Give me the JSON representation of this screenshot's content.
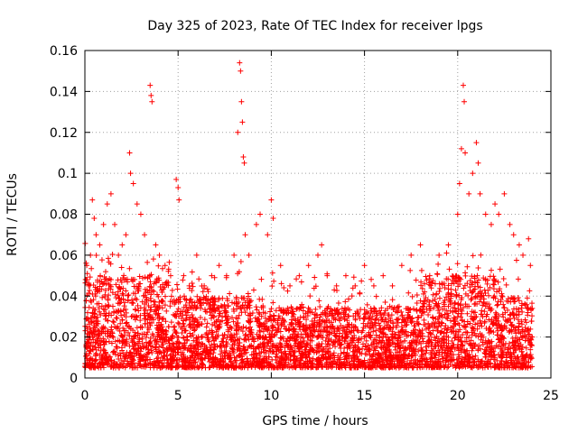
{
  "chart_data": {
    "type": "scatter",
    "title": "Day 325 of 2023, Rate Of TEC Index for receiver lpgs",
    "xlabel": "GPS time / hours",
    "ylabel": "ROTI / TECUs",
    "xlim": [
      0,
      25
    ],
    "ylim": [
      0,
      0.16
    ],
    "xticks": [
      0,
      5,
      10,
      15,
      20,
      25
    ],
    "xtick_labels": [
      "0",
      "5",
      "10",
      "15",
      "20",
      "25"
    ],
    "yticks": [
      0,
      0.02,
      0.04,
      0.06,
      0.08,
      0.1,
      0.12,
      0.14,
      0.16
    ],
    "ytick_labels": [
      "0",
      "0.02",
      "0.04",
      "0.06",
      "0.08",
      "0.1",
      "0.12",
      "0.14",
      "0.16"
    ],
    "grid": true,
    "marker": "+",
    "color": "#ff0000",
    "series": [
      {
        "name": "ROTI",
        "points": [
          [
            0.1,
            0.055
          ],
          [
            0.2,
            0.045
          ],
          [
            0.3,
            0.06
          ],
          [
            0.4,
            0.087
          ],
          [
            0.5,
            0.078
          ],
          [
            0.6,
            0.07
          ],
          [
            0.8,
            0.065
          ],
          [
            1.0,
            0.075
          ],
          [
            1.2,
            0.085
          ],
          [
            1.4,
            0.09
          ],
          [
            1.6,
            0.075
          ],
          [
            1.8,
            0.06
          ],
          [
            2.0,
            0.065
          ],
          [
            2.2,
            0.07
          ],
          [
            2.4,
            0.11
          ],
          [
            2.45,
            0.1
          ],
          [
            2.6,
            0.095
          ],
          [
            2.8,
            0.085
          ],
          [
            3.0,
            0.08
          ],
          [
            3.2,
            0.07
          ],
          [
            3.5,
            0.143
          ],
          [
            3.55,
            0.138
          ],
          [
            3.6,
            0.135
          ],
          [
            3.8,
            0.065
          ],
          [
            4.0,
            0.06
          ],
          [
            4.3,
            0.055
          ],
          [
            4.6,
            0.05
          ],
          [
            4.9,
            0.097
          ],
          [
            5.0,
            0.093
          ],
          [
            5.05,
            0.087
          ],
          [
            5.3,
            0.05
          ],
          [
            5.6,
            0.045
          ],
          [
            6.0,
            0.06
          ],
          [
            6.4,
            0.045
          ],
          [
            6.8,
            0.05
          ],
          [
            7.2,
            0.055
          ],
          [
            7.6,
            0.05
          ],
          [
            8.0,
            0.06
          ],
          [
            8.2,
            0.12
          ],
          [
            8.3,
            0.154
          ],
          [
            8.35,
            0.15
          ],
          [
            8.4,
            0.135
          ],
          [
            8.45,
            0.125
          ],
          [
            8.5,
            0.108
          ],
          [
            8.55,
            0.105
          ],
          [
            8.6,
            0.07
          ],
          [
            8.8,
            0.06
          ],
          [
            9.2,
            0.075
          ],
          [
            9.4,
            0.08
          ],
          [
            9.8,
            0.07
          ],
          [
            10.0,
            0.087
          ],
          [
            10.1,
            0.078
          ],
          [
            10.5,
            0.055
          ],
          [
            11.0,
            0.045
          ],
          [
            11.5,
            0.05
          ],
          [
            12.0,
            0.055
          ],
          [
            12.5,
            0.06
          ],
          [
            12.7,
            0.065
          ],
          [
            13.0,
            0.05
          ],
          [
            13.5,
            0.045
          ],
          [
            14.0,
            0.05
          ],
          [
            14.5,
            0.045
          ],
          [
            15.0,
            0.055
          ],
          [
            15.5,
            0.045
          ],
          [
            16.0,
            0.05
          ],
          [
            16.5,
            0.045
          ],
          [
            17.0,
            0.055
          ],
          [
            17.5,
            0.06
          ],
          [
            18.0,
            0.065
          ],
          [
            18.5,
            0.05
          ],
          [
            19.0,
            0.06
          ],
          [
            19.5,
            0.065
          ],
          [
            20.0,
            0.08
          ],
          [
            20.1,
            0.095
          ],
          [
            20.2,
            0.112
          ],
          [
            20.3,
            0.143
          ],
          [
            20.35,
            0.135
          ],
          [
            20.4,
            0.11
          ],
          [
            20.6,
            0.09
          ],
          [
            20.8,
            0.1
          ],
          [
            21.0,
            0.115
          ],
          [
            21.1,
            0.105
          ],
          [
            21.2,
            0.09
          ],
          [
            21.5,
            0.08
          ],
          [
            21.8,
            0.075
          ],
          [
            22.0,
            0.085
          ],
          [
            22.2,
            0.08
          ],
          [
            22.5,
            0.09
          ],
          [
            22.8,
            0.075
          ],
          [
            23.0,
            0.07
          ],
          [
            23.3,
            0.065
          ],
          [
            23.5,
            0.06
          ],
          [
            23.8,
            0.068
          ],
          [
            23.9,
            0.055
          ],
          [
            0.5,
            0.03
          ],
          [
            1.0,
            0.025
          ],
          [
            1.5,
            0.035
          ],
          [
            2.0,
            0.02
          ],
          [
            2.5,
            0.03
          ],
          [
            3.0,
            0.025
          ],
          [
            3.5,
            0.03
          ],
          [
            4.0,
            0.02
          ],
          [
            4.5,
            0.025
          ],
          [
            5.0,
            0.015
          ],
          [
            5.5,
            0.02
          ],
          [
            6.0,
            0.025
          ],
          [
            6.5,
            0.015
          ],
          [
            7.0,
            0.02
          ],
          [
            7.5,
            0.015
          ],
          [
            8.0,
            0.02
          ],
          [
            8.5,
            0.025
          ],
          [
            9.0,
            0.02
          ],
          [
            9.5,
            0.025
          ],
          [
            10.0,
            0.02
          ],
          [
            10.5,
            0.015
          ],
          [
            11.0,
            0.02
          ],
          [
            11.5,
            0.025
          ],
          [
            12.0,
            0.02
          ],
          [
            12.5,
            0.02
          ],
          [
            13.0,
            0.025
          ],
          [
            13.5,
            0.02
          ],
          [
            14.0,
            0.02
          ],
          [
            14.5,
            0.025
          ],
          [
            15.0,
            0.02
          ],
          [
            15.5,
            0.025
          ],
          [
            16.0,
            0.02
          ],
          [
            16.5,
            0.02
          ],
          [
            17.0,
            0.025
          ],
          [
            17.5,
            0.015
          ],
          [
            18.0,
            0.02
          ],
          [
            18.5,
            0.025
          ],
          [
            19.0,
            0.03
          ],
          [
            19.5,
            0.035
          ],
          [
            20.0,
            0.03
          ],
          [
            20.5,
            0.035
          ],
          [
            21.0,
            0.03
          ],
          [
            21.5,
            0.035
          ],
          [
            22.0,
            0.03
          ],
          [
            22.5,
            0.025
          ],
          [
            23.0,
            0.025
          ],
          [
            23.5,
            0.02
          ],
          [
            24.0,
            0.02
          ]
        ]
      }
    ]
  }
}
